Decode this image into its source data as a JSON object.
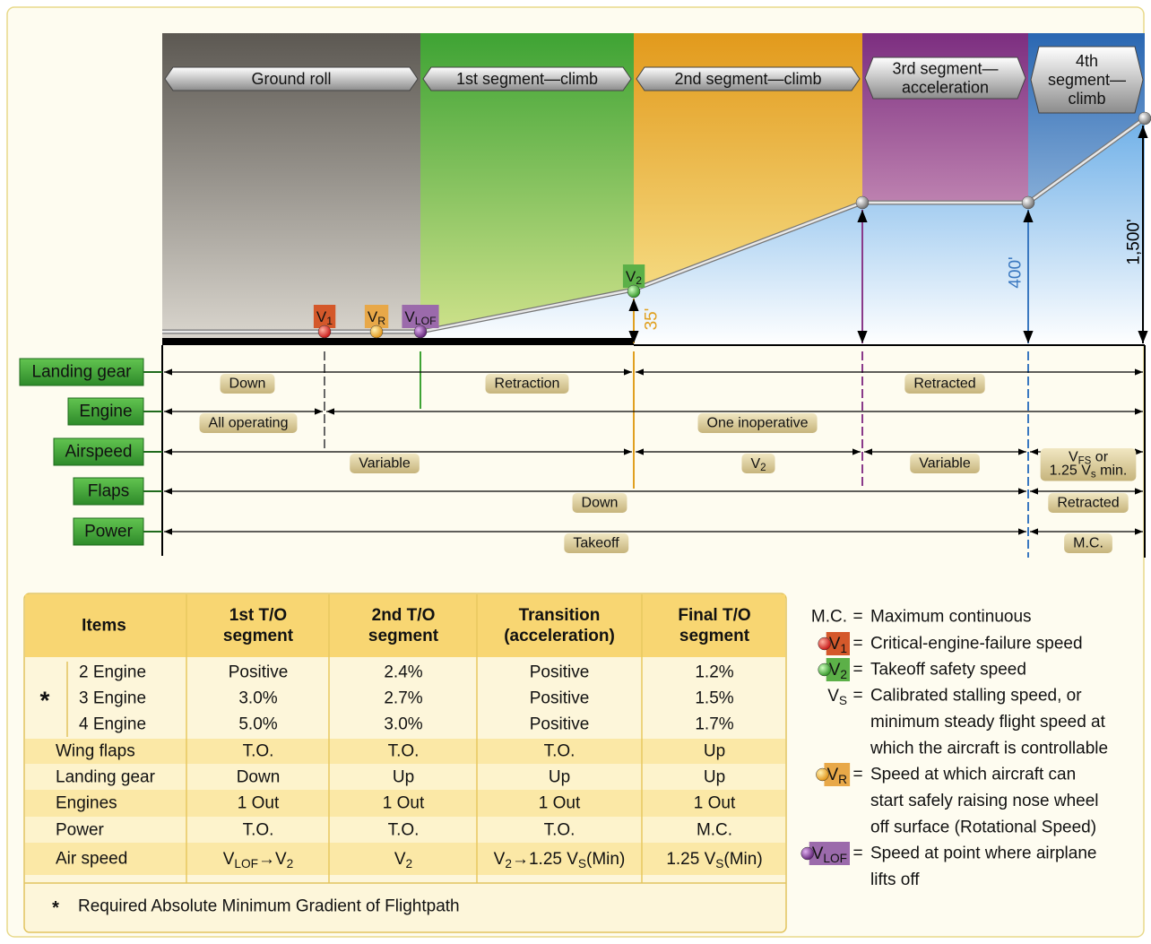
{
  "segments": [
    "Ground roll",
    "1st segment—climb",
    "2nd segment—climb",
    {
      "lines": [
        "3rd segment—",
        "acceleration"
      ]
    },
    {
      "lines": [
        "4th",
        "segment—",
        "climb"
      ]
    }
  ],
  "speeds": {
    "v1": [
      "V",
      {
        "sub": "1"
      }
    ],
    "vr": [
      "V",
      {
        "sub": "R"
      }
    ],
    "vlof": [
      "V",
      {
        "sub": "LOF"
      }
    ],
    "v2": [
      "V",
      {
        "sub": "2"
      }
    ]
  },
  "heights": [
    "35'",
    "400'",
    "1,500'"
  ],
  "rows": [
    {
      "label": "Landing gear",
      "phases": [
        "Down",
        "Retraction",
        "Retracted"
      ]
    },
    {
      "label": "Engine",
      "phases": [
        "All operating",
        "One inoperative"
      ]
    },
    {
      "label": "Airspeed",
      "phases": [
        "Variable",
        [
          "V",
          {
            "sub": "2"
          }
        ],
        "Variable",
        {
          "lines": [
            [
              "V",
              {
                "sub": "FS"
              },
              " or"
            ],
            [
              "1.25 V",
              {
                "sub": "s"
              },
              " min."
            ]
          ]
        }
      ]
    },
    {
      "label": "Flaps",
      "phases": [
        "Down",
        "Retracted"
      ]
    },
    {
      "label": "Power",
      "phases": [
        "Takeoff",
        "M.C."
      ]
    }
  ],
  "table": {
    "header": [
      "Items",
      {
        "lines": [
          "1st T/O",
          "segment"
        ]
      },
      {
        "lines": [
          "2nd T/O",
          "segment"
        ]
      },
      {
        "lines": [
          "Transition",
          "(acceleration)"
        ]
      },
      {
        "lines": [
          "Final T/O",
          "segment"
        ]
      }
    ],
    "star": "*",
    "gradient_rows": [
      [
        "2 Engine",
        "Positive",
        "2.4%",
        "Positive",
        "1.2%"
      ],
      [
        "3 Engine",
        "3.0%",
        "2.7%",
        "Positive",
        "1.5%"
      ],
      [
        "4 Engine",
        "5.0%",
        "3.0%",
        "Positive",
        "1.7%"
      ]
    ],
    "rows": [
      [
        "Wing flaps",
        "T.O.",
        "T.O.",
        "T.O.",
        "Up"
      ],
      [
        "Landing gear",
        "Down",
        "Up",
        "Up",
        "Up"
      ],
      [
        "Engines",
        "1 Out",
        "1 Out",
        "1 Out",
        "1 Out"
      ],
      [
        "Power",
        "T.O.",
        "T.O.",
        "T.O.",
        "M.C."
      ],
      [
        "Air speed",
        [
          "V",
          {
            "sub": "LOF"
          },
          "→V",
          {
            "sub": "2"
          }
        ],
        [
          "V",
          {
            "sub": "2"
          }
        ],
        [
          "V",
          {
            "sub": "2"
          },
          "→1.25 V",
          {
            "sub": "S"
          },
          "(Min)"
        ],
        [
          "1.25 V",
          {
            "sub": "S"
          },
          "(Min)"
        ]
      ]
    ],
    "footnote": {
      "star": "*",
      "text": "Required Absolute Minimum Gradient of Flightpath"
    }
  },
  "legend": {
    "equals": "=",
    "items": [
      {
        "symbol": "M.C.",
        "lines": [
          "Maximum continuous"
        ]
      },
      {
        "symbol": [
          "V",
          {
            "sub": "1"
          }
        ],
        "lines": [
          "Critical-engine-failure speed"
        ]
      },
      {
        "symbol": [
          "V",
          {
            "sub": "2"
          }
        ],
        "lines": [
          "Takeoff safety speed"
        ]
      },
      {
        "symbol": [
          "V",
          {
            "sub": "S"
          }
        ],
        "lines": [
          "Calibrated stalling speed, or",
          "minimum steady flight speed at",
          "which the aircraft is controllable"
        ]
      },
      {
        "symbol": [
          "V",
          {
            "sub": "R"
          }
        ],
        "lines": [
          "Speed at which aircraft can",
          "start safely raising nose wheel",
          "off surface (Rotational Speed)"
        ]
      },
      {
        "symbol": [
          "V",
          {
            "sub": "LOF"
          }
        ],
        "lines": [
          "Speed at point where airplane",
          "lifts off"
        ]
      }
    ]
  }
}
